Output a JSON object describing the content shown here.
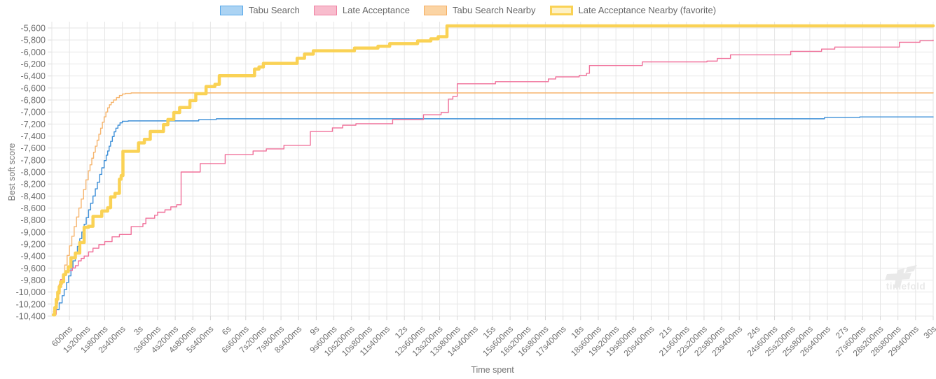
{
  "axes": {
    "x_title": "Time spent",
    "y_title": "Best soft score"
  },
  "watermark": {
    "text": "timefold"
  },
  "colors": {
    "grid": "#e6e6e6",
    "tick_mark": "#d8d8d8",
    "tick_text": "#6e6e6e",
    "axis_title_text": "#757575",
    "legend_text": "#666666",
    "watermark_gray": "#e9e9e9"
  },
  "chart_data": {
    "type": "line",
    "stepped": true,
    "title": "",
    "xlabel": "Time spent",
    "ylabel": "Best soft score",
    "x_unit": "milliseconds",
    "xlim_ms": [
      0,
      30000
    ],
    "x_tick_interval_ms": 600,
    "ylim": [
      -10400,
      -5600
    ],
    "y_tick_interval": 200,
    "grid": true,
    "legend_position": "top",
    "x_tick_labels": [
      "600ms",
      "1s200ms",
      "1s800ms",
      "2s400ms",
      "3s",
      "3s600ms",
      "4s200ms",
      "4s800ms",
      "5s400ms",
      "6s",
      "6s600ms",
      "7s200ms",
      "7s800ms",
      "8s400ms",
      "9s",
      "9s600ms",
      "10s200ms",
      "10s800ms",
      "11s400ms",
      "12s",
      "12s600ms",
      "13s200ms",
      "13s800ms",
      "14s400ms",
      "15s",
      "15s600ms",
      "16s200ms",
      "16s800ms",
      "17s400ms",
      "18s",
      "18s600ms",
      "19s200ms",
      "19s800ms",
      "20s400ms",
      "21s",
      "21s600ms",
      "22s200ms",
      "22s800ms",
      "23s400ms",
      "24s",
      "24s600ms",
      "25s200ms",
      "25s800ms",
      "26s400ms",
      "27s",
      "27s600ms",
      "28s200ms",
      "28s800ms",
      "29s400ms",
      "30s"
    ],
    "y_tick_labels": [
      "-5,600",
      "-5,800",
      "-6,000",
      "-6,200",
      "-6,400",
      "-6,600",
      "-6,800",
      "-7,000",
      "-7,200",
      "-7,400",
      "-7,600",
      "-7,800",
      "-8,000",
      "-8,200",
      "-8,400",
      "-8,600",
      "-8,800",
      "-9,000",
      "-9,200",
      "-9,400",
      "-9,600",
      "-9,800",
      "-10,000",
      "-10,200",
      "-10,400"
    ],
    "series": [
      {
        "name": "Tabu Search",
        "line_color": "#3d8fd8",
        "swatch_fill": "#abd3f3",
        "swatch_border": "#55a7ea",
        "line_width": 1.4,
        "points_ms_score": [
          [
            80,
            -10360
          ],
          [
            150,
            -10290
          ],
          [
            250,
            -10180
          ],
          [
            350,
            -10060
          ],
          [
            420,
            -9960
          ],
          [
            500,
            -9840
          ],
          [
            570,
            -9730
          ],
          [
            650,
            -9600
          ],
          [
            720,
            -9480
          ],
          [
            800,
            -9350
          ],
          [
            870,
            -9240
          ],
          [
            950,
            -9110
          ],
          [
            1020,
            -9000
          ],
          [
            1100,
            -8870
          ],
          [
            1170,
            -8760
          ],
          [
            1250,
            -8630
          ],
          [
            1320,
            -8520
          ],
          [
            1400,
            -8400
          ],
          [
            1480,
            -8280
          ],
          [
            1550,
            -8170
          ],
          [
            1630,
            -8040
          ],
          [
            1700,
            -7930
          ],
          [
            1780,
            -7810
          ],
          [
            1850,
            -7720
          ],
          [
            1900,
            -7650
          ],
          [
            1950,
            -7570
          ],
          [
            2000,
            -7490
          ],
          [
            2060,
            -7410
          ],
          [
            2120,
            -7330
          ],
          [
            2180,
            -7270
          ],
          [
            2250,
            -7220
          ],
          [
            2320,
            -7180
          ],
          [
            2400,
            -7155
          ],
          [
            2600,
            -7148
          ],
          [
            4800,
            -7148
          ],
          [
            5000,
            -7125
          ],
          [
            5600,
            -7113
          ],
          [
            26100,
            -7113
          ],
          [
            26300,
            -7092
          ],
          [
            27500,
            -7082
          ],
          [
            30000,
            -7082
          ]
        ]
      },
      {
        "name": "Late Acceptance",
        "line_color": "#f0709a",
        "swatch_fill": "#f8bccd",
        "swatch_border": "#ef7fa2",
        "line_width": 1.4,
        "points_ms_score": [
          [
            100,
            -10370
          ],
          [
            150,
            -10180
          ],
          [
            200,
            -9990
          ],
          [
            250,
            -9870
          ],
          [
            300,
            -9790
          ],
          [
            360,
            -9730
          ],
          [
            450,
            -9680
          ],
          [
            550,
            -9640
          ],
          [
            700,
            -9600
          ],
          [
            800,
            -9560
          ],
          [
            900,
            -9480
          ],
          [
            1000,
            -9440
          ],
          [
            1100,
            -9400
          ],
          [
            1250,
            -9330
          ],
          [
            1400,
            -9270
          ],
          [
            1600,
            -9210
          ],
          [
            1800,
            -9160
          ],
          [
            2050,
            -9080
          ],
          [
            2300,
            -9040
          ],
          [
            2700,
            -8910
          ],
          [
            3100,
            -8860
          ],
          [
            3200,
            -8770
          ],
          [
            3500,
            -8720
          ],
          [
            3600,
            -8670
          ],
          [
            3850,
            -8630
          ],
          [
            4050,
            -8580
          ],
          [
            4250,
            -8545
          ],
          [
            4400,
            -8000
          ],
          [
            5050,
            -7860
          ],
          [
            5900,
            -7710
          ],
          [
            6850,
            -7650
          ],
          [
            7300,
            -7615
          ],
          [
            7900,
            -7555
          ],
          [
            8800,
            -7325
          ],
          [
            9550,
            -7265
          ],
          [
            9900,
            -7220
          ],
          [
            10350,
            -7195
          ],
          [
            11600,
            -7125
          ],
          [
            12650,
            -7045
          ],
          [
            13250,
            -7008
          ],
          [
            13500,
            -6785
          ],
          [
            13650,
            -6740
          ],
          [
            13800,
            -6530
          ],
          [
            15100,
            -6495
          ],
          [
            16900,
            -6450
          ],
          [
            17150,
            -6415
          ],
          [
            17950,
            -6390
          ],
          [
            18200,
            -6355
          ],
          [
            18300,
            -6225
          ],
          [
            20100,
            -6165
          ],
          [
            22300,
            -6152
          ],
          [
            22650,
            -6108
          ],
          [
            23100,
            -6048
          ],
          [
            25150,
            -5990
          ],
          [
            26200,
            -5952
          ],
          [
            26650,
            -5918
          ],
          [
            28850,
            -5838
          ],
          [
            29550,
            -5812
          ],
          [
            30000,
            -5802
          ]
        ]
      },
      {
        "name": "Tabu Search Nearby",
        "line_color": "#f6b56e",
        "swatch_fill": "#fbd4a4",
        "swatch_border": "#f5ae62",
        "line_width": 1.4,
        "points_ms_score": [
          [
            50,
            -10330
          ],
          [
            120,
            -10190
          ],
          [
            200,
            -10030
          ],
          [
            280,
            -9870
          ],
          [
            360,
            -9710
          ],
          [
            440,
            -9550
          ],
          [
            520,
            -9390
          ],
          [
            600,
            -9230
          ],
          [
            680,
            -9070
          ],
          [
            760,
            -8910
          ],
          [
            840,
            -8750
          ],
          [
            920,
            -8600
          ],
          [
            1000,
            -8450
          ],
          [
            1080,
            -8290
          ],
          [
            1160,
            -8130
          ],
          [
            1240,
            -7980
          ],
          [
            1300,
            -7880
          ],
          [
            1360,
            -7770
          ],
          [
            1420,
            -7670
          ],
          [
            1480,
            -7570
          ],
          [
            1540,
            -7470
          ],
          [
            1600,
            -7370
          ],
          [
            1660,
            -7270
          ],
          [
            1720,
            -7170
          ],
          [
            1780,
            -7080
          ],
          [
            1840,
            -7000
          ],
          [
            1900,
            -6930
          ],
          [
            1960,
            -6880
          ],
          [
            2020,
            -6840
          ],
          [
            2100,
            -6800
          ],
          [
            2200,
            -6760
          ],
          [
            2300,
            -6725
          ],
          [
            2400,
            -6700
          ],
          [
            2500,
            -6690
          ],
          [
            2700,
            -6682
          ],
          [
            30000,
            -6682
          ]
        ]
      },
      {
        "name": "Late Acceptance Nearby (favorite)",
        "line_color": "#fad255",
        "swatch_fill": "#fdf1c5",
        "swatch_border": "#fad255",
        "line_width": 4.5,
        "points_ms_score": [
          [
            50,
            -10380
          ],
          [
            100,
            -10260
          ],
          [
            150,
            -10120
          ],
          [
            200,
            -10000
          ],
          [
            250,
            -9910
          ],
          [
            300,
            -9830
          ],
          [
            400,
            -9710
          ],
          [
            470,
            -9660
          ],
          [
            560,
            -9580
          ],
          [
            650,
            -9430
          ],
          [
            800,
            -9350
          ],
          [
            950,
            -9175
          ],
          [
            1100,
            -8920
          ],
          [
            1250,
            -8905
          ],
          [
            1400,
            -8740
          ],
          [
            1700,
            -8650
          ],
          [
            1900,
            -8595
          ],
          [
            2000,
            -8415
          ],
          [
            2150,
            -8355
          ],
          [
            2300,
            -8120
          ],
          [
            2360,
            -8060
          ],
          [
            2420,
            -7655
          ],
          [
            2950,
            -7515
          ],
          [
            3150,
            -7455
          ],
          [
            3350,
            -7325
          ],
          [
            3800,
            -7210
          ],
          [
            3950,
            -7125
          ],
          [
            4150,
            -7010
          ],
          [
            4350,
            -6925
          ],
          [
            4700,
            -6810
          ],
          [
            4900,
            -6695
          ],
          [
            5250,
            -6575
          ],
          [
            5550,
            -6540
          ],
          [
            5700,
            -6395
          ],
          [
            6900,
            -6285
          ],
          [
            7050,
            -6250
          ],
          [
            7200,
            -6190
          ],
          [
            8350,
            -6105
          ],
          [
            8600,
            -6035
          ],
          [
            8900,
            -5980
          ],
          [
            10300,
            -5935
          ],
          [
            11100,
            -5905
          ],
          [
            11500,
            -5860
          ],
          [
            12450,
            -5815
          ],
          [
            12900,
            -5780
          ],
          [
            13150,
            -5745
          ],
          [
            13450,
            -5565
          ],
          [
            30000,
            -5565
          ]
        ]
      }
    ]
  }
}
